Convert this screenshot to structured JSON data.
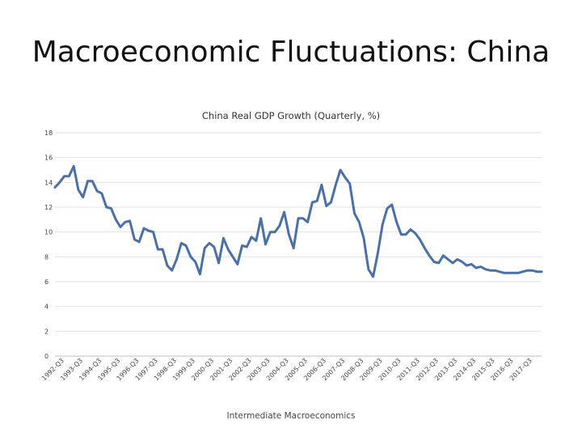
{
  "slide": {
    "title": "Macroeconomic Fluctuations: China",
    "footer": "Intermediate Macroeconomics"
  },
  "chart_data": {
    "type": "line",
    "title": "China Real GDP Growth (Quarterly, %)",
    "xlabel": "",
    "ylabel": "",
    "ylim": [
      0,
      18
    ],
    "yticks": [
      0,
      2,
      4,
      6,
      8,
      10,
      12,
      14,
      16,
      18
    ],
    "xtick_labels": [
      "1992-Q3",
      "1993-Q3",
      "1994-Q3",
      "1995-Q3",
      "1996-Q3",
      "1997-Q3",
      "1998-Q3",
      "1999-Q3",
      "2000-Q3",
      "2001-Q3",
      "2002-Q3",
      "2003-Q3",
      "2004-Q3",
      "2005-Q3",
      "2006-Q3",
      "2007-Q3",
      "2008-Q3",
      "2009-Q3",
      "2010-Q3",
      "2011-Q3",
      "2012-Q3",
      "2013-Q3",
      "2014-Q3",
      "2015-Q3",
      "2016-Q3",
      "2017-Q3"
    ],
    "grid": true,
    "line_color": "#4a70a8",
    "series": [
      {
        "name": "",
        "start": "1992-Q1",
        "values": [
          13.6,
          14.0,
          14.5,
          14.5,
          15.3,
          13.4,
          12.8,
          14.1,
          14.1,
          13.3,
          13.1,
          12.0,
          11.9,
          11.0,
          10.4,
          10.8,
          10.9,
          9.4,
          9.2,
          10.3,
          10.1,
          10.0,
          8.6,
          8.6,
          7.3,
          6.9,
          7.8,
          9.1,
          8.9,
          8.0,
          7.6,
          6.6,
          8.7,
          9.1,
          8.8,
          7.5,
          9.5,
          8.6,
          8.0,
          7.4,
          8.9,
          8.8,
          9.6,
          9.3,
          11.1,
          9.0,
          10.0,
          10.0,
          10.5,
          11.6,
          9.8,
          8.7,
          11.1,
          11.1,
          10.8,
          12.4,
          12.5,
          13.8,
          12.1,
          12.4,
          13.8,
          15.0,
          14.4,
          13.9,
          11.5,
          10.8,
          9.5,
          7.0,
          6.4,
          8.3,
          10.6,
          11.9,
          12.2,
          10.8,
          9.8,
          9.8,
          10.2,
          9.9,
          9.4,
          8.7,
          8.1,
          7.6,
          7.5,
          8.1,
          7.8,
          7.5,
          7.8,
          7.6,
          7.3,
          7.4,
          7.1,
          7.2,
          7.0,
          6.9,
          6.9,
          6.8,
          6.7,
          6.7,
          6.7,
          6.7,
          6.8,
          6.9,
          6.9,
          6.8,
          6.8
        ]
      }
    ]
  }
}
